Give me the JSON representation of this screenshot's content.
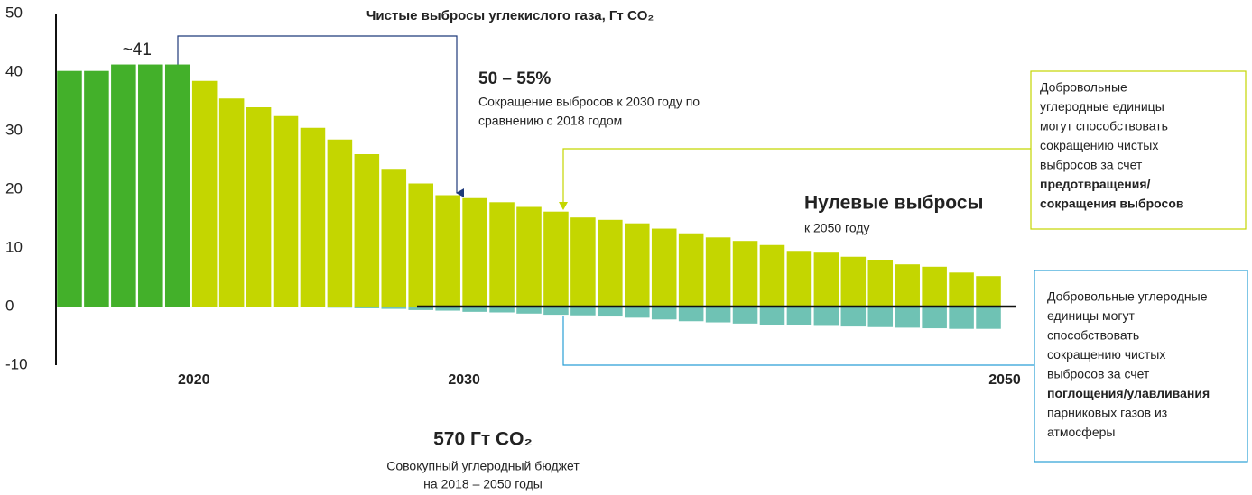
{
  "chart_data": {
    "type": "bar",
    "title": "Чистые выбросы углекислого газа, Гт CO₂",
    "categories": [
      null,
      null,
      null,
      null,
      "2020",
      null,
      null,
      null,
      null,
      null,
      null,
      null,
      null,
      null,
      "2030",
      null,
      null,
      null,
      null,
      null,
      null,
      null,
      null,
      null,
      null,
      null,
      null,
      null,
      null,
      null,
      null,
      null,
      null,
      null,
      "2050"
    ],
    "series": [
      {
        "color": "#43b02a",
        "values": [
          40.2,
          40.2,
          41.3,
          41.3,
          41.3,
          null,
          null,
          null,
          null,
          null,
          null,
          null,
          null,
          null,
          null,
          null,
          null,
          null,
          null,
          null,
          null,
          null,
          null,
          null,
          null,
          null,
          null,
          null,
          null,
          null,
          null,
          null,
          null,
          null,
          null
        ]
      },
      {
        "color": "#c4d600",
        "values": [
          null,
          null,
          null,
          null,
          null,
          38.5,
          35.5,
          34,
          32.5,
          30.5,
          28.5,
          26,
          23.5,
          21,
          19,
          18.5,
          17.8,
          17,
          16.2,
          15.2,
          14.8,
          14.2,
          13.3,
          12.5,
          11.8,
          11.2,
          10.5,
          9.5,
          9.2,
          8.5,
          8,
          7.2,
          6.8,
          5.8,
          5.2
        ]
      },
      {
        "color": "#6fc2b4",
        "values": [
          null,
          null,
          null,
          null,
          null,
          null,
          null,
          null,
          null,
          null,
          -0.2,
          -0.3,
          -0.4,
          -0.6,
          -0.7,
          -0.9,
          -1,
          -1.2,
          -1.4,
          -1.5,
          -1.7,
          -1.9,
          -2.2,
          -2.5,
          -2.7,
          -2.9,
          -3.1,
          -3.2,
          -3.3,
          -3.4,
          -3.5,
          -3.6,
          -3.7,
          -3.8,
          -3.8
        ]
      }
    ],
    "ylim": [
      -10,
      50
    ],
    "yticks": [
      -10,
      0,
      10,
      20,
      30,
      40,
      50
    ],
    "grid": false,
    "annotations": {
      "peak": "~41",
      "reduction_value": "50 – 55%",
      "reduction_text": [
        "Сокращение выбросов к 2030 году по",
        "сравнению с 2018 годом"
      ],
      "net_zero": "Нулевые выбросы",
      "net_zero_year": "к 2050 году",
      "budget_value": "570 Гт CO₂",
      "budget_text": [
        "Совокупный углеродный бюджет",
        "на 2018 – 2050 годы"
      ]
    },
    "boxes": [
      {
        "color": "#c4d600",
        "segments": [
          {
            "text": "Добровольные",
            "bold": false
          },
          {
            "text": "углеродные единицы",
            "bold": false
          },
          {
            "text": "могут способствовать",
            "bold": false
          },
          {
            "text": "сокращению чистых",
            "bold": false
          },
          {
            "text": "выбросов за счет",
            "bold": false
          },
          {
            "text": "предотвращения/",
            "bold": true
          },
          {
            "text": "сокращения выбросов",
            "bold": true
          }
        ]
      },
      {
        "color": "#2a9fd6",
        "segments": [
          {
            "text": "Добровольные углеродные",
            "bold": false
          },
          {
            "text": "единицы могут",
            "bold": false
          },
          {
            "text": "способствовать",
            "bold": false
          },
          {
            "text": "сокращению чистых",
            "bold": false
          },
          {
            "text": "выбросов за счет",
            "bold": false
          },
          {
            "text": "поглощения/улавливания",
            "bold": true
          },
          {
            "text": "парниковых газов из",
            "bold": false
          },
          {
            "text": "атмосферы",
            "bold": false
          }
        ]
      }
    ]
  }
}
